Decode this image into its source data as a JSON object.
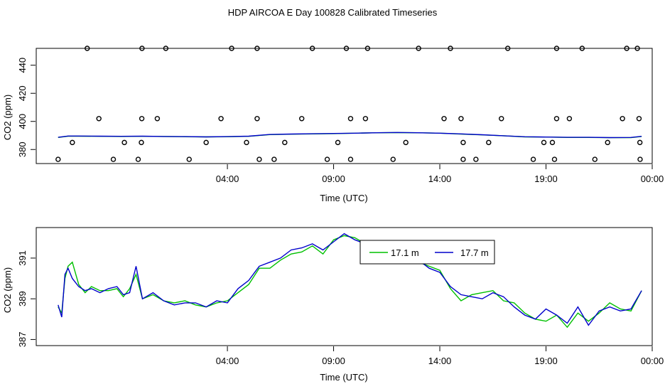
{
  "page_title": "HDP AIRCOA E  Day 100828  Calibrated Timeseries",
  "colors": {
    "series_a": "#00c000",
    "series_b": "#0000cc",
    "axis": "#000000"
  },
  "chart_data": [
    {
      "type": "scatter",
      "xlabel": "Time (UTC)",
      "ylabel": "CO2 (ppm)",
      "x_unit": "hours_since_midnight",
      "xlim": [
        -5.0,
        24.0
      ],
      "ylim": [
        370,
        452
      ],
      "xticks": [
        4,
        9,
        14,
        19,
        24
      ],
      "xtick_labels": [
        "04:00",
        "09:00",
        "14:00",
        "19:00",
        "00:00"
      ],
      "yticks": [
        380,
        400,
        420,
        440
      ],
      "ytick_labels": [
        "380",
        "400",
        "420",
        "440"
      ],
      "points": [
        [
          -3.97,
          373
        ],
        [
          -3.3,
          385
        ],
        [
          -2.6,
          452
        ],
        [
          -2.05,
          402
        ],
        [
          -1.37,
          373
        ],
        [
          -0.85,
          385
        ],
        [
          -0.2,
          373
        ],
        [
          -0.05,
          385
        ],
        [
          -0.02,
          452
        ],
        [
          -0.03,
          402
        ],
        [
          0.7,
          402
        ],
        [
          1.1,
          452
        ],
        [
          2.2,
          373
        ],
        [
          3.0,
          385
        ],
        [
          3.7,
          402
        ],
        [
          4.2,
          452
        ],
        [
          4.9,
          385
        ],
        [
          5.4,
          452
        ],
        [
          5.4,
          402
        ],
        [
          5.5,
          373
        ],
        [
          6.2,
          373
        ],
        [
          6.7,
          385
        ],
        [
          7.5,
          402
        ],
        [
          8.0,
          452
        ],
        [
          8.7,
          373
        ],
        [
          9.2,
          385
        ],
        [
          9.6,
          452
        ],
        [
          9.8,
          373
        ],
        [
          9.8,
          402
        ],
        [
          10.5,
          402
        ],
        [
          10.6,
          452
        ],
        [
          11.8,
          373
        ],
        [
          12.4,
          385
        ],
        [
          13.0,
          452
        ],
        [
          14.2,
          402
        ],
        [
          14.5,
          452
        ],
        [
          15.0,
          402
        ],
        [
          15.1,
          385
        ],
        [
          15.1,
          373
        ],
        [
          15.7,
          373
        ],
        [
          16.3,
          385
        ],
        [
          16.9,
          402
        ],
        [
          17.2,
          452
        ],
        [
          18.4,
          373
        ],
        [
          18.9,
          385
        ],
        [
          19.3,
          385
        ],
        [
          19.4,
          373
        ],
        [
          19.5,
          402
        ],
        [
          19.5,
          452
        ],
        [
          20.1,
          402
        ],
        [
          20.7,
          452
        ],
        [
          21.3,
          373
        ],
        [
          21.9,
          385
        ],
        [
          22.6,
          402
        ],
        [
          22.8,
          452
        ],
        [
          23.3,
          452
        ],
        [
          23.38,
          402
        ],
        [
          23.42,
          385
        ],
        [
          23.43,
          373
        ]
      ],
      "series": [
        {
          "x": [
            -3.97,
            -3.5,
            -3.0,
            -2.0,
            -1.0,
            0.0,
            1.0,
            2.0,
            3.0,
            4.0,
            5.0,
            6.0,
            7.0,
            8.0,
            9.0,
            10.0,
            11.0,
            12.0,
            13.0,
            14.0,
            15.0,
            16.0,
            17.0,
            18.0,
            19.0,
            20.0,
            21.0,
            22.0,
            23.0,
            23.5
          ],
          "values": [
            388.6,
            389.5,
            389.5,
            389.4,
            389.3,
            389.4,
            389.3,
            389.1,
            389.0,
            389.1,
            389.4,
            390.6,
            390.9,
            391.1,
            391.3,
            391.6,
            391.9,
            392.0,
            391.9,
            391.6,
            391.0,
            390.4,
            389.8,
            389.0,
            388.9,
            388.6,
            388.6,
            388.4,
            388.5,
            389.3
          ],
          "color": "#00c000"
        },
        {
          "x": [
            -3.97,
            -3.5,
            -3.0,
            -2.0,
            -1.0,
            0.0,
            1.0,
            2.0,
            3.0,
            4.0,
            5.0,
            6.0,
            7.0,
            8.0,
            9.0,
            10.0,
            11.0,
            12.0,
            13.0,
            14.0,
            15.0,
            16.0,
            17.0,
            18.0,
            19.0,
            20.0,
            21.0,
            22.0,
            23.0,
            23.5
          ],
          "values": [
            388.7,
            389.6,
            389.6,
            389.5,
            389.4,
            389.5,
            389.3,
            389.2,
            389.0,
            389.2,
            389.5,
            390.7,
            391.0,
            391.2,
            391.4,
            391.6,
            391.9,
            392.1,
            391.9,
            391.6,
            391.1,
            390.5,
            389.8,
            389.1,
            388.9,
            388.7,
            388.7,
            388.5,
            388.6,
            389.4
          ],
          "color": "#0000cc"
        }
      ]
    },
    {
      "type": "line",
      "xlabel": "Time (UTC)",
      "ylabel": "CO2 (ppm)",
      "x_unit": "hours_since_midnight",
      "xlim": [
        -5.0,
        24.0
      ],
      "ylim": [
        386.7,
        392.5
      ],
      "xticks": [
        4,
        9,
        14,
        19,
        24
      ],
      "xtick_labels": [
        "04:00",
        "09:00",
        "14:00",
        "19:00",
        "00:00"
      ],
      "yticks": [
        387,
        389,
        391
      ],
      "ytick_labels": [
        "387",
        "389",
        "391"
      ],
      "x": [
        -3.97,
        -3.8,
        -3.65,
        -3.5,
        -3.3,
        -3.0,
        -2.7,
        -2.4,
        -2.0,
        -1.6,
        -1.2,
        -0.9,
        -0.6,
        -0.3,
        0.0,
        0.5,
        1.0,
        1.5,
        2.0,
        2.5,
        3.0,
        3.5,
        4.0,
        4.5,
        5.0,
        5.5,
        6.0,
        6.5,
        7.0,
        7.5,
        8.0,
        8.5,
        9.0,
        9.5,
        10.0,
        10.5,
        11.0,
        11.5,
        12.0,
        12.5,
        13.0,
        13.5,
        14.0,
        14.5,
        15.0,
        15.5,
        16.0,
        16.5,
        17.0,
        17.5,
        18.0,
        18.5,
        19.0,
        19.5,
        20.0,
        20.5,
        21.0,
        21.5,
        22.0,
        22.5,
        23.0,
        23.5
      ],
      "series": [
        {
          "name": "17.1 m",
          "color": "#00c000",
          "values": [
            388.6,
            388.3,
            390.0,
            390.6,
            390.8,
            389.7,
            389.3,
            389.6,
            389.4,
            389.4,
            389.5,
            389.1,
            389.5,
            390.2,
            389.0,
            389.2,
            388.9,
            388.8,
            388.9,
            388.7,
            388.6,
            388.8,
            388.9,
            389.3,
            389.7,
            390.5,
            390.5,
            390.9,
            391.2,
            391.3,
            391.6,
            391.2,
            391.9,
            392.1,
            392.0,
            391.7,
            391.5,
            391.2,
            391.0,
            390.9,
            390.8,
            390.6,
            390.4,
            389.5,
            388.9,
            389.2,
            389.3,
            389.4,
            388.9,
            388.8,
            388.3,
            388.0,
            387.9,
            388.2,
            387.6,
            388.3,
            387.9,
            388.3,
            388.8,
            388.5,
            388.4,
            389.4
          ]
        },
        {
          "name": "17.7 m",
          "color": "#0000cc",
          "values": [
            388.7,
            388.1,
            390.2,
            390.5,
            390.0,
            389.6,
            389.4,
            389.5,
            389.3,
            389.5,
            389.6,
            389.2,
            389.3,
            390.6,
            389.0,
            389.3,
            388.9,
            388.7,
            388.8,
            388.8,
            388.6,
            388.9,
            388.8,
            389.5,
            389.9,
            390.6,
            390.8,
            391.0,
            391.4,
            391.5,
            391.7,
            391.4,
            391.8,
            392.2,
            391.9,
            391.7,
            391.4,
            391.3,
            391.1,
            390.9,
            390.9,
            390.5,
            390.3,
            389.6,
            389.2,
            389.1,
            389.0,
            389.3,
            389.1,
            388.6,
            388.2,
            388.0,
            388.5,
            388.2,
            387.8,
            388.6,
            387.7,
            388.4,
            388.6,
            388.4,
            388.5,
            389.4
          ]
        }
      ],
      "legend": {
        "placement": "top-right",
        "entries": [
          "17.1 m",
          "17.7 m"
        ]
      }
    }
  ]
}
